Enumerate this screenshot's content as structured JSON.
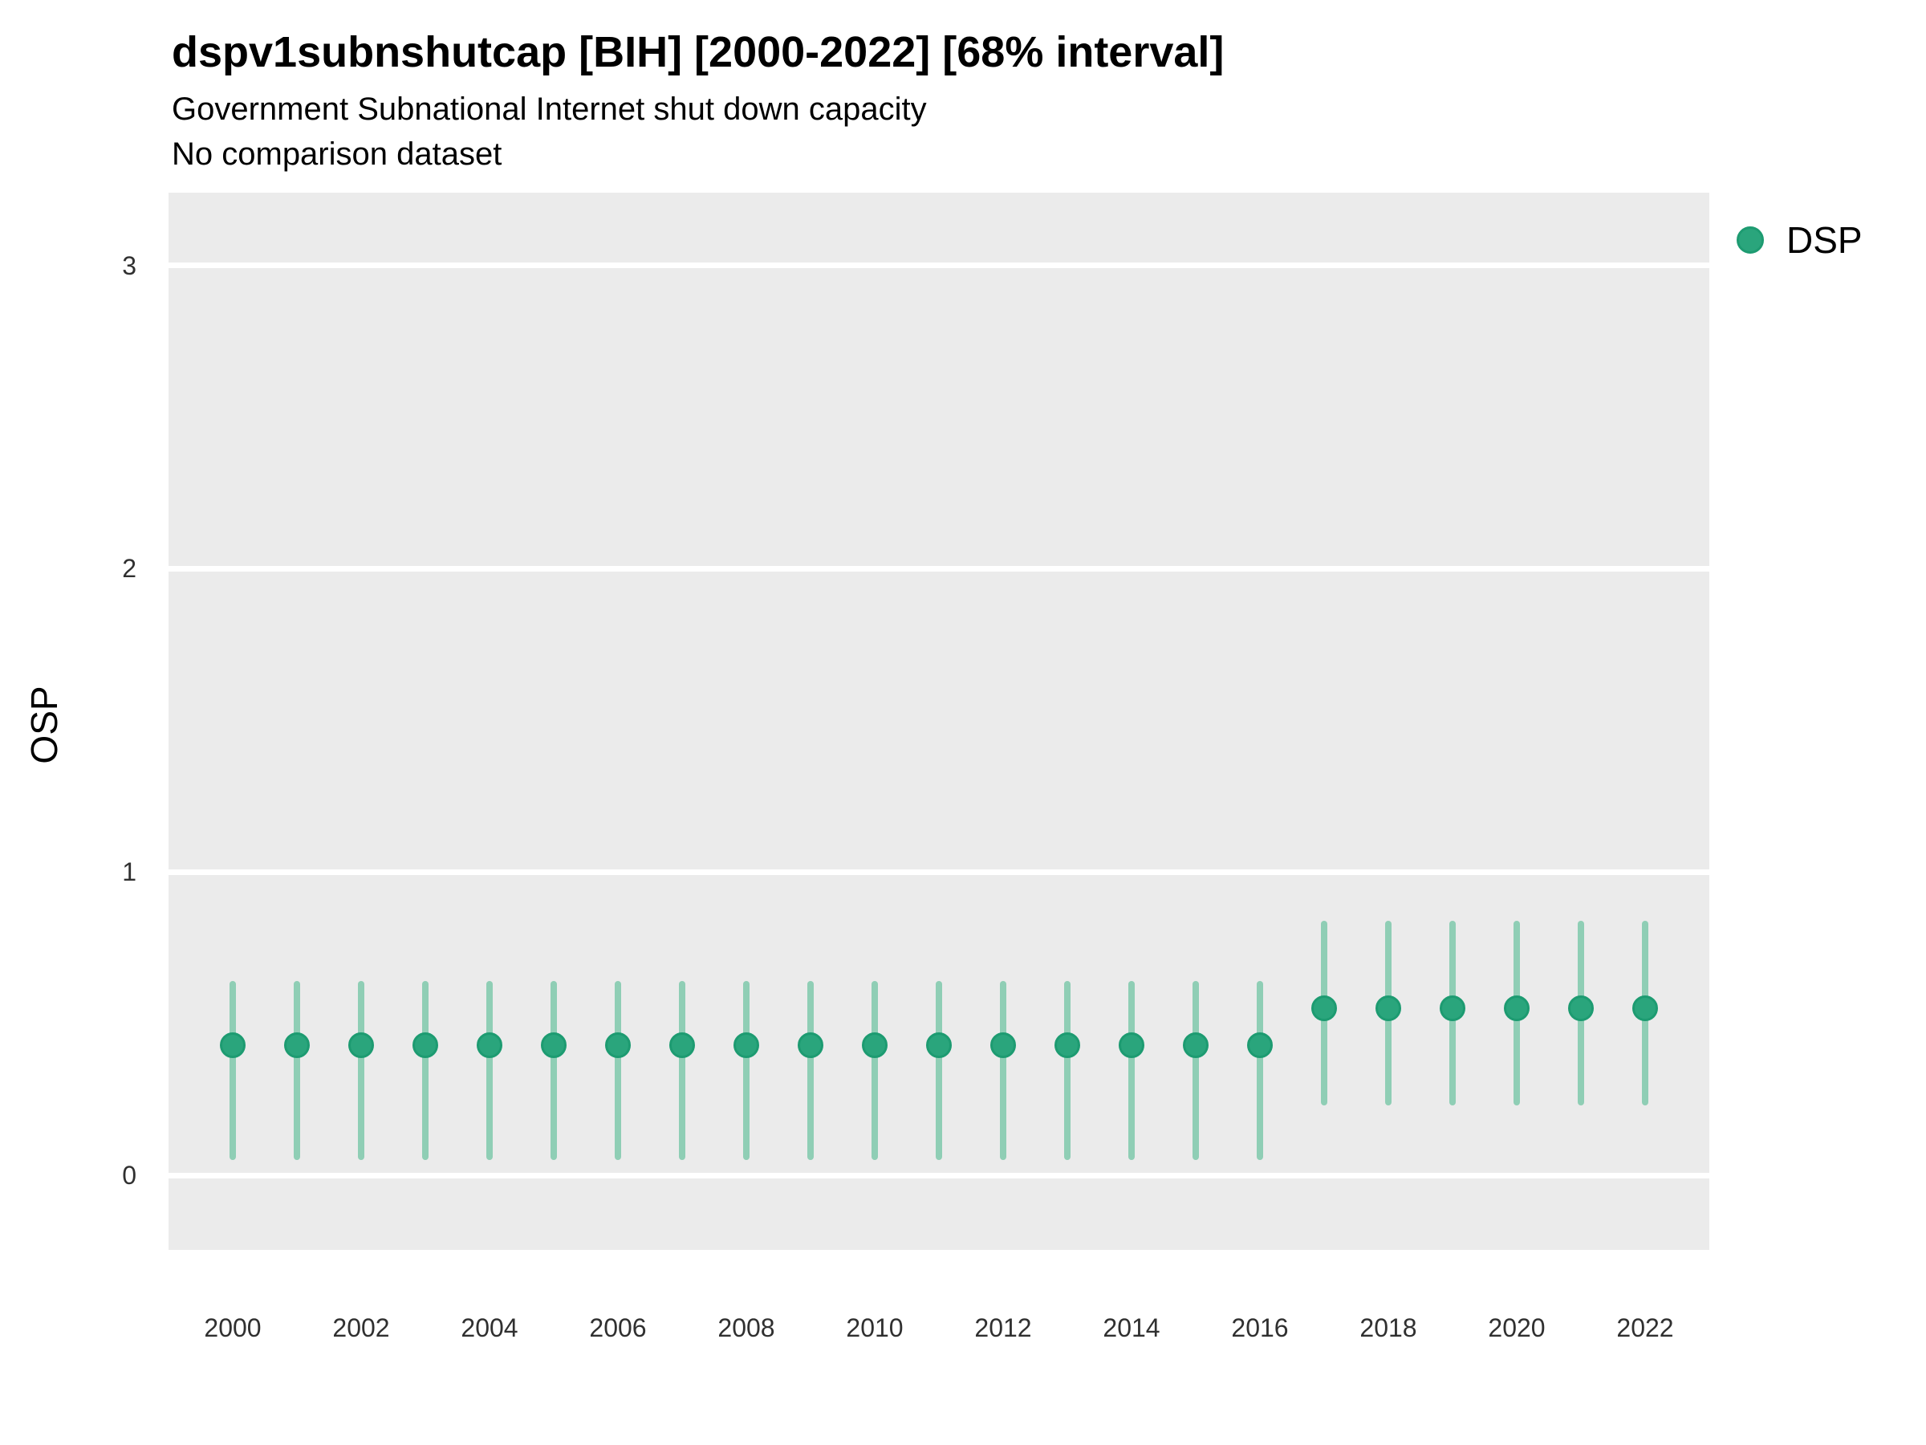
{
  "header": {
    "title": "dspv1subnshutcap [BIH] [2000-2022] [68% interval]",
    "subtitle_line1": "Government Subnational Internet shut down capacity",
    "subtitle_line2": "No comparison dataset"
  },
  "legend": {
    "position": "right",
    "items": [
      {
        "label": "DSP",
        "marker": "circle",
        "marker_color": "#2aa57c"
      }
    ]
  },
  "colors": {
    "point_fill": "#2aa57c",
    "point_stroke": "#1d9b71",
    "interval_bar": "#8fceb5",
    "panel_background": "#ebebeb",
    "gridline": "#ffffff",
    "title_text": "#000000",
    "axis_text": "#303030"
  },
  "chart_data": {
    "type": "scatter",
    "title": "dspv1subnshutcap [BIH] [2000-2022] [68% interval]",
    "subtitle": [
      "Government Subnational Internet shut down capacity",
      "No comparison dataset"
    ],
    "interval_label": "68% interval",
    "xlabel": "",
    "ylabel": "OSP",
    "grid": "white horizontal gridlines on gray panel",
    "legend_position": "right",
    "ylim": [
      -0.25,
      3.24
    ],
    "yticks": [
      0,
      1,
      2,
      3
    ],
    "xticks": [
      2000,
      2002,
      2004,
      2006,
      2008,
      2010,
      2012,
      2014,
      2016,
      2018,
      2020,
      2022
    ],
    "series": [
      {
        "name": "DSP",
        "points": [
          {
            "year": 2000,
            "mean": 0.43,
            "lower": 0.05,
            "upper": 0.64
          },
          {
            "year": 2001,
            "mean": 0.43,
            "lower": 0.05,
            "upper": 0.64
          },
          {
            "year": 2002,
            "mean": 0.43,
            "lower": 0.05,
            "upper": 0.64
          },
          {
            "year": 2003,
            "mean": 0.43,
            "lower": 0.05,
            "upper": 0.64
          },
          {
            "year": 2004,
            "mean": 0.43,
            "lower": 0.05,
            "upper": 0.64
          },
          {
            "year": 2005,
            "mean": 0.43,
            "lower": 0.05,
            "upper": 0.64
          },
          {
            "year": 2006,
            "mean": 0.43,
            "lower": 0.05,
            "upper": 0.64
          },
          {
            "year": 2007,
            "mean": 0.43,
            "lower": 0.05,
            "upper": 0.64
          },
          {
            "year": 2008,
            "mean": 0.43,
            "lower": 0.05,
            "upper": 0.64
          },
          {
            "year": 2009,
            "mean": 0.43,
            "lower": 0.05,
            "upper": 0.64
          },
          {
            "year": 2010,
            "mean": 0.43,
            "lower": 0.05,
            "upper": 0.64
          },
          {
            "year": 2011,
            "mean": 0.43,
            "lower": 0.05,
            "upper": 0.64
          },
          {
            "year": 2012,
            "mean": 0.43,
            "lower": 0.05,
            "upper": 0.64
          },
          {
            "year": 2013,
            "mean": 0.43,
            "lower": 0.05,
            "upper": 0.64
          },
          {
            "year": 2014,
            "mean": 0.43,
            "lower": 0.05,
            "upper": 0.64
          },
          {
            "year": 2015,
            "mean": 0.43,
            "lower": 0.05,
            "upper": 0.64
          },
          {
            "year": 2016,
            "mean": 0.43,
            "lower": 0.05,
            "upper": 0.64
          },
          {
            "year": 2017,
            "mean": 0.55,
            "lower": 0.23,
            "upper": 0.84
          },
          {
            "year": 2018,
            "mean": 0.55,
            "lower": 0.23,
            "upper": 0.84
          },
          {
            "year": 2019,
            "mean": 0.55,
            "lower": 0.23,
            "upper": 0.84
          },
          {
            "year": 2020,
            "mean": 0.55,
            "lower": 0.23,
            "upper": 0.84
          },
          {
            "year": 2021,
            "mean": 0.55,
            "lower": 0.23,
            "upper": 0.84
          },
          {
            "year": 2022,
            "mean": 0.55,
            "lower": 0.23,
            "upper": 0.84
          }
        ]
      }
    ]
  }
}
